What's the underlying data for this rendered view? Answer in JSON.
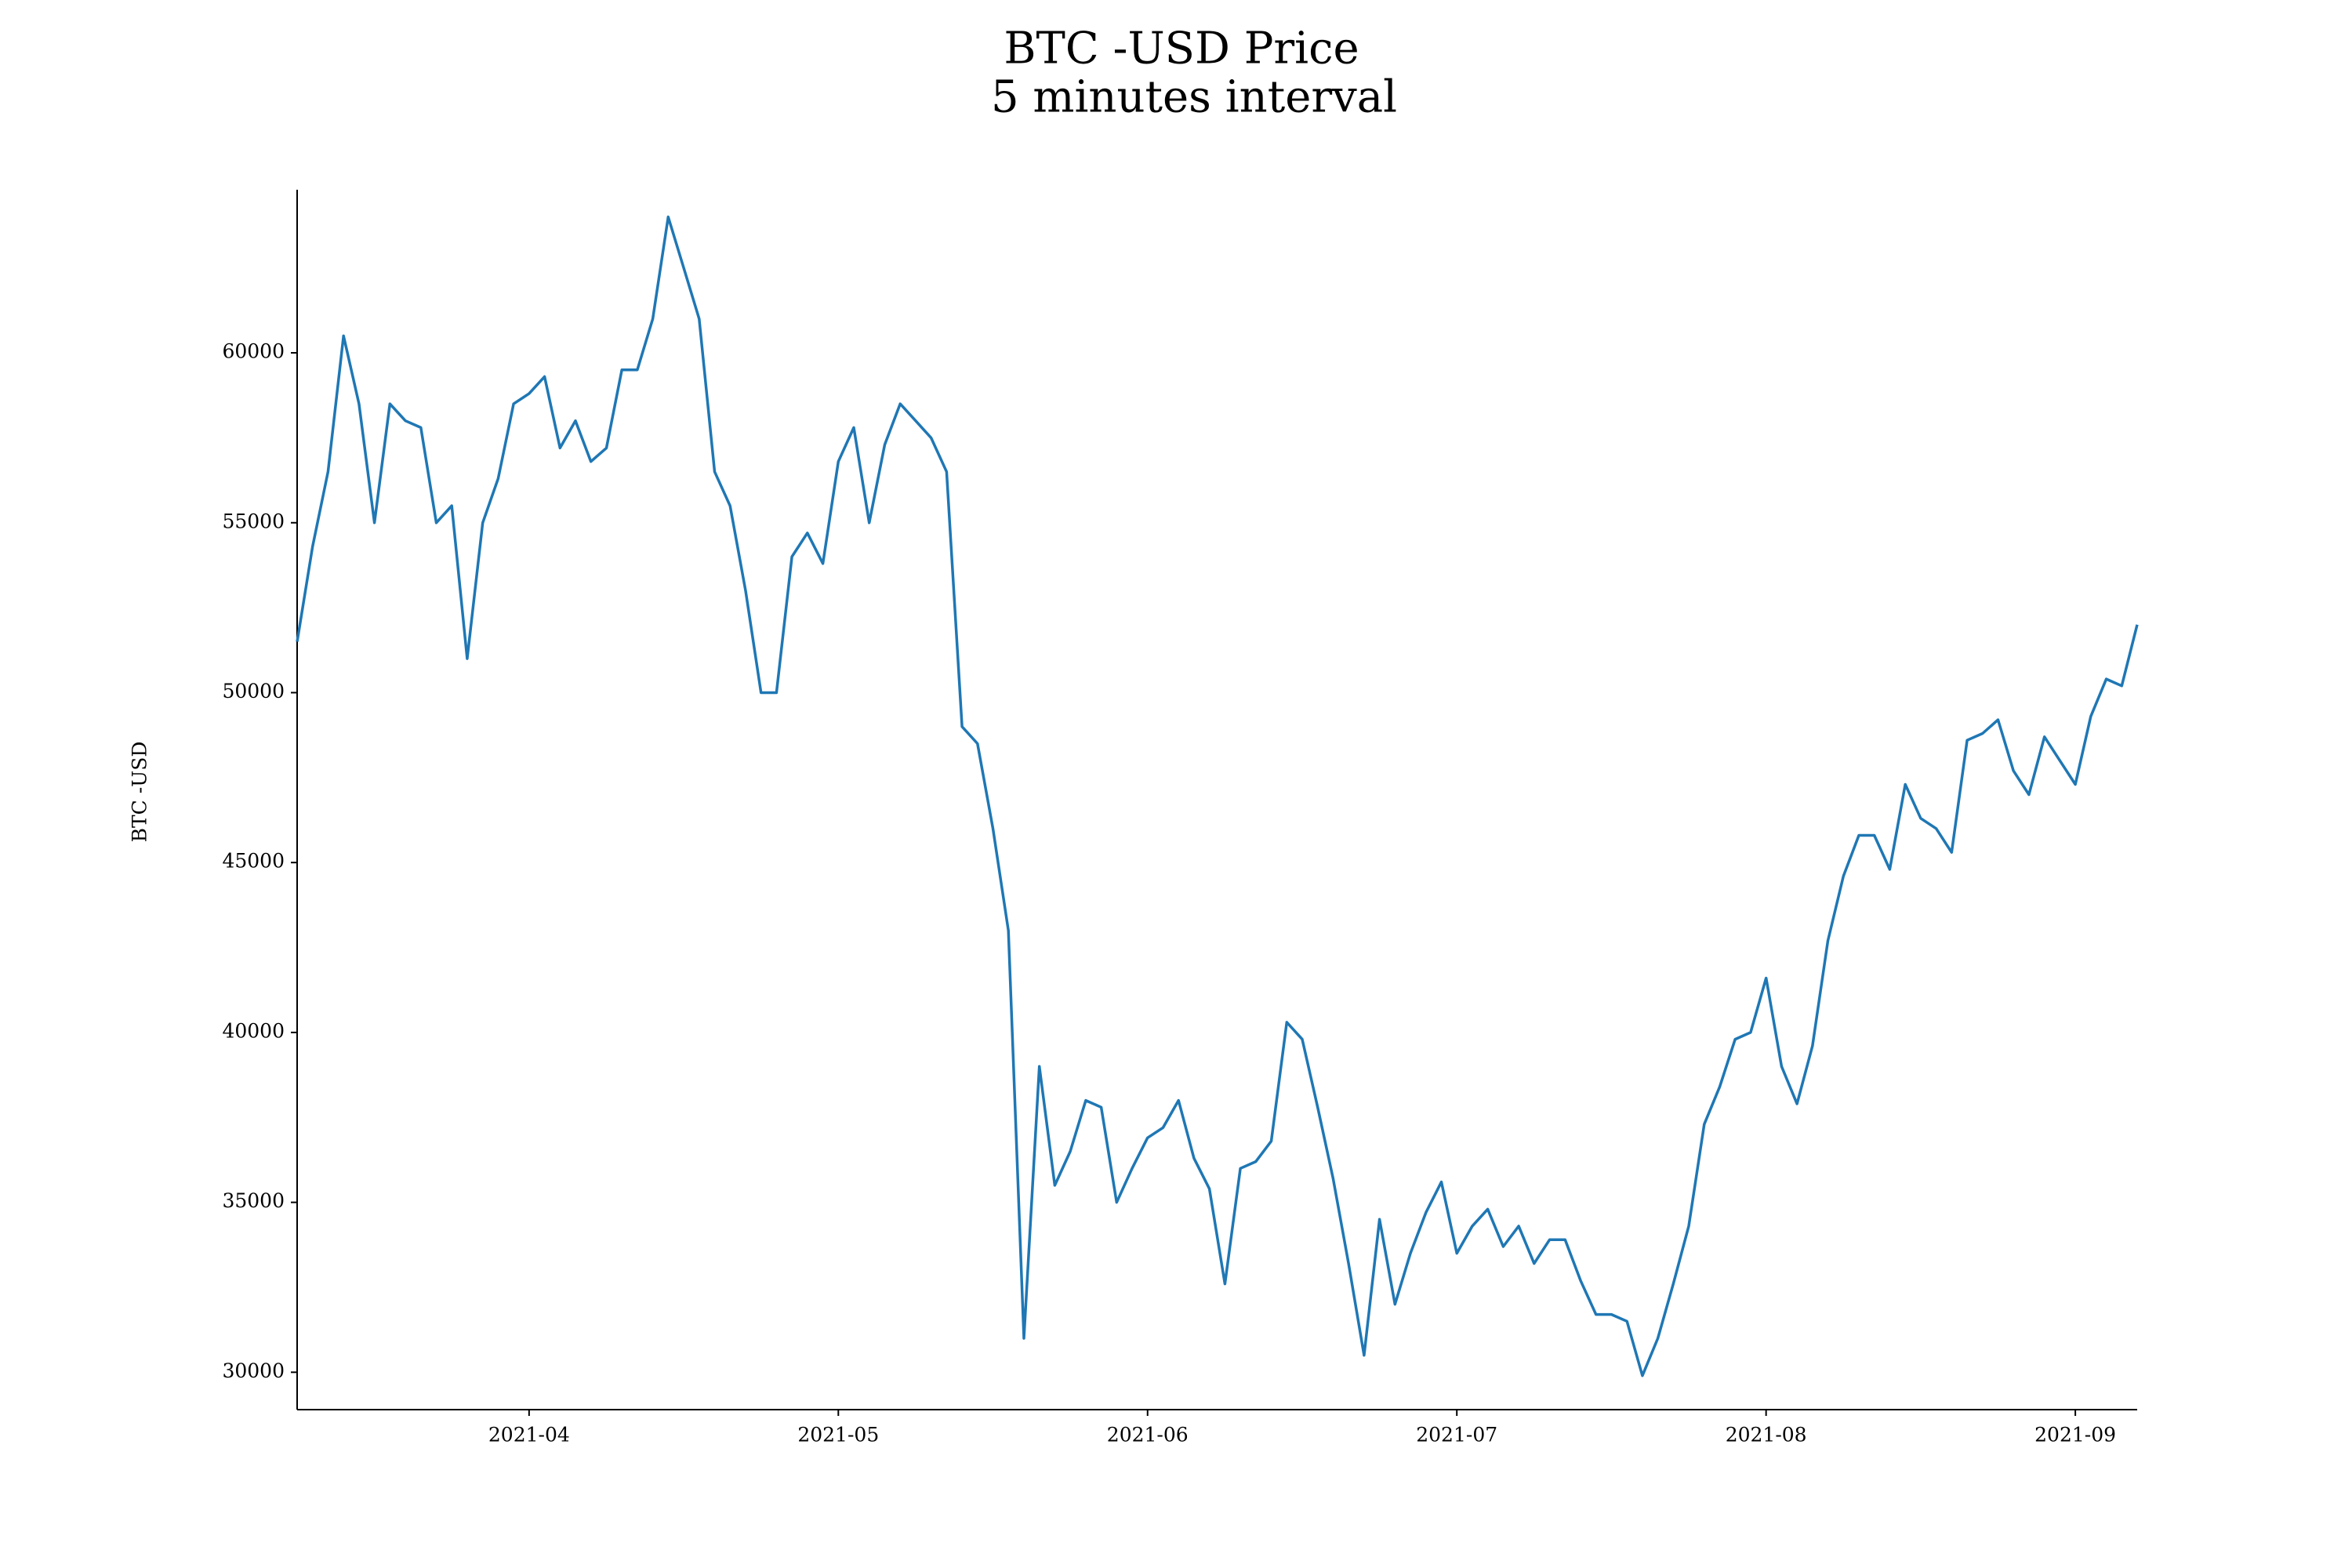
{
  "chart_data": {
    "type": "line",
    "title": "BTC -USD Price",
    "subtitle": "5 minutes interval",
    "ylabel": "BTC -USD",
    "color": "#1f77b4",
    "x": [
      3.25,
      3.3,
      3.35,
      3.4,
      3.45,
      3.5,
      3.55,
      3.6,
      3.65,
      3.7,
      3.75,
      3.8,
      3.85,
      3.9,
      3.95,
      4.0,
      4.05,
      4.1,
      4.15,
      4.2,
      4.25,
      4.3,
      4.35,
      4.4,
      4.45,
      4.5,
      4.55,
      4.6,
      4.65,
      4.7,
      4.75,
      4.8,
      4.85,
      4.9,
      4.95,
      5.0,
      5.05,
      5.1,
      5.15,
      5.2,
      5.25,
      5.3,
      5.35,
      5.4,
      5.45,
      5.5,
      5.55,
      5.6,
      5.65,
      5.7,
      5.75,
      5.8,
      5.85,
      5.9,
      5.95,
      6.0,
      6.05,
      6.1,
      6.15,
      6.2,
      6.25,
      6.3,
      6.35,
      6.4,
      6.45,
      6.5,
      6.55,
      6.6,
      6.65,
      6.7,
      6.75,
      6.8,
      6.85,
      6.9,
      6.95,
      7.0,
      7.05,
      7.1,
      7.15,
      7.2,
      7.25,
      7.3,
      7.35,
      7.4,
      7.45,
      7.5,
      7.55,
      7.6,
      7.65,
      7.7,
      7.75,
      7.8,
      7.85,
      7.9,
      7.95,
      8.0,
      8.05,
      8.1,
      8.15,
      8.2,
      8.25,
      8.3,
      8.35,
      8.4,
      8.45,
      8.5,
      8.55,
      8.6,
      8.65,
      8.7,
      8.75,
      8.8,
      8.85,
      8.9,
      8.95,
      9.0,
      9.05,
      9.1,
      9.15,
      9.2
    ],
    "values": [
      51500,
      54300,
      56500,
      60500,
      58500,
      55000,
      58500,
      58000,
      57800,
      55000,
      55500,
      51000,
      55000,
      56300,
      58500,
      58800,
      59300,
      57200,
      58000,
      56800,
      57200,
      59500,
      59500,
      61000,
      64000,
      62500,
      61000,
      56500,
      55500,
      53000,
      50000,
      50000,
      54000,
      54700,
      53800,
      56800,
      57800,
      55000,
      57300,
      58500,
      58000,
      57500,
      56500,
      49000,
      48500,
      46000,
      43000,
      31000,
      39000,
      35500,
      36500,
      38000,
      37800,
      35000,
      36000,
      36900,
      37200,
      38000,
      36300,
      35400,
      32600,
      36000,
      36200,
      36800,
      40300,
      39800,
      37800,
      35700,
      33200,
      30500,
      34500,
      32000,
      33500,
      34700,
      35600,
      33500,
      34300,
      34800,
      33700,
      34300,
      33200,
      33900,
      33900,
      32700,
      31700,
      31700,
      31500,
      29900,
      31000,
      32600,
      34300,
      37300,
      38400,
      39800,
      40000,
      41600,
      39000,
      37900,
      39600,
      42700,
      44600,
      45800,
      45800,
      44800,
      47300,
      46300,
      46000,
      45300,
      48600,
      48800,
      49200,
      47700,
      47000,
      48700,
      48000,
      47300,
      49300,
      50400,
      50200,
      52000
    ],
    "xlim": [
      3.25,
      9.2
    ],
    "ylim": [
      28900,
      64800
    ],
    "xticks": [
      {
        "value": 4,
        "label": "2021-04"
      },
      {
        "value": 5,
        "label": "2021-05"
      },
      {
        "value": 6,
        "label": "2021-06"
      },
      {
        "value": 7,
        "label": "2021-07"
      },
      {
        "value": 8,
        "label": "2021-08"
      },
      {
        "value": 9,
        "label": "2021-09"
      }
    ],
    "yticks": [
      30000,
      35000,
      40000,
      45000,
      50000,
      55000,
      60000
    ],
    "grid": false
  }
}
